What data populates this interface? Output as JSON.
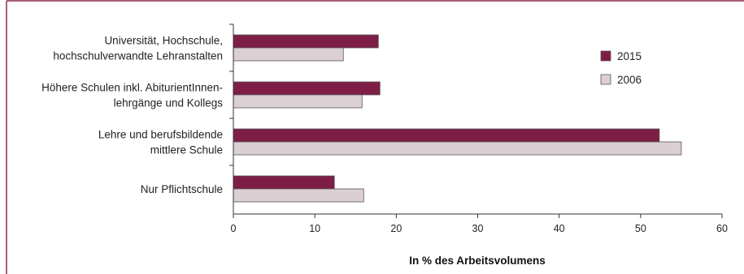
{
  "chart_data": {
    "type": "bar",
    "orientation": "horizontal",
    "categories": [
      [
        "Universität, Hochschule,",
        "hochschulverwandte Lehranstalten"
      ],
      [
        "Höhere Schulen inkl. AbiturientInnen-",
        "lehrgänge und Kollegs"
      ],
      [
        "Lehre und berufsbildende",
        "mittlere Schule"
      ],
      [
        "Nur Pflichtschule"
      ]
    ],
    "series": [
      {
        "name": "2015",
        "color": "#7e1e46",
        "values": [
          17.8,
          18.0,
          52.3,
          12.4
        ]
      },
      {
        "name": "2006",
        "color": "#dccfd4",
        "values": [
          13.5,
          15.8,
          55.0,
          16.0
        ]
      }
    ],
    "xlabel": "In % des Arbeitsvolumens",
    "xlim": [
      0,
      60
    ],
    "xticks": [
      0,
      10,
      20,
      30,
      40,
      50,
      60
    ],
    "grid": false,
    "legend": "right",
    "frame_color": "#8a2a52"
  }
}
